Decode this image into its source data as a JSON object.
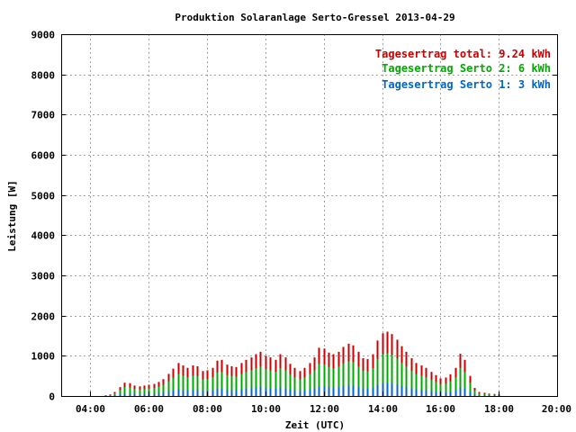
{
  "chart_data": {
    "type": "bar",
    "stacked": true,
    "title": "Produktion Solaranlage Serto-Gressel 2013-04-29",
    "xlabel": "Zeit (UTC)",
    "ylabel": "Leistung [W]",
    "ylim": [
      0,
      9000
    ],
    "xlim": [
      3.0,
      20.0
    ],
    "grid": true,
    "legend_position": "top-right",
    "yticks": [
      "0",
      "1000",
      "2000",
      "3000",
      "4000",
      "5000",
      "6000",
      "7000",
      "8000",
      "9000"
    ],
    "xticks": [
      "04:00",
      "06:00",
      "08:00",
      "10:00",
      "12:00",
      "14:00",
      "16:00",
      "18:00",
      "20:00"
    ],
    "legend": [
      {
        "text": "Tagesertrag total: 9.24 kWh",
        "color": "#cc0000"
      },
      {
        "text": "Tagesertrag Serto 2: 6 kWh",
        "color": "#00aa00"
      },
      {
        "text": "Tagesertrag Serto 1: 3 kWh",
        "color": "#0066cc"
      }
    ],
    "series": [
      {
        "color": "#0066cc",
        "stack_layer": 1
      },
      {
        "color": "#00aa00",
        "stack_layer": 2
      },
      {
        "color": "#cc0000",
        "stack_layer": 3
      }
    ],
    "x": [
      4.5,
      4.67,
      4.83,
      5.0,
      5.17,
      5.33,
      5.5,
      5.67,
      5.83,
      6.0,
      6.17,
      6.33,
      6.5,
      6.67,
      6.83,
      7.0,
      7.17,
      7.33,
      7.5,
      7.67,
      7.83,
      8.0,
      8.17,
      8.33,
      8.5,
      8.67,
      8.83,
      9.0,
      9.17,
      9.33,
      9.5,
      9.67,
      9.83,
      10.0,
      10.17,
      10.33,
      10.5,
      10.67,
      10.83,
      11.0,
      11.17,
      11.33,
      11.5,
      11.67,
      11.83,
      12.0,
      12.17,
      12.33,
      12.5,
      12.67,
      12.83,
      13.0,
      13.17,
      13.33,
      13.5,
      13.67,
      13.83,
      14.0,
      14.17,
      14.33,
      14.5,
      14.67,
      14.83,
      15.0,
      15.17,
      15.33,
      15.5,
      15.67,
      15.83,
      16.0,
      16.17,
      16.33,
      16.5,
      16.67,
      16.83,
      17.0,
      17.17,
      17.33,
      17.5,
      17.67,
      17.83,
      18.0
    ],
    "total": [
      20,
      40,
      100,
      220,
      330,
      320,
      260,
      240,
      260,
      280,
      300,
      350,
      420,
      550,
      680,
      820,
      760,
      700,
      760,
      740,
      620,
      640,
      700,
      880,
      900,
      780,
      740,
      720,
      820,
      900,
      960,
      1040,
      1100,
      1000,
      960,
      900,
      1040,
      960,
      800,
      700,
      620,
      700,
      820,
      960,
      1200,
      1180,
      1080,
      1040,
      1100,
      1220,
      1300,
      1260,
      1100,
      940,
      920,
      1040,
      1380,
      1560,
      1600,
      1540,
      1400,
      1240,
      1100,
      940,
      820,
      760,
      700,
      600,
      520,
      440,
      460,
      540,
      700,
      1050,
      900,
      500,
      200,
      100,
      80,
      60,
      50,
      40
    ],
    "serto2": [
      12,
      26,
      66,
      146,
      220,
      214,
      174,
      160,
      174,
      186,
      200,
      234,
      280,
      366,
      454,
      546,
      506,
      466,
      506,
      494,
      414,
      426,
      466,
      586,
      600,
      520,
      494,
      480,
      546,
      600,
      640,
      694,
      734,
      666,
      640,
      600,
      694,
      640,
      534,
      466,
      414,
      466,
      546,
      640,
      800,
      786,
      720,
      694,
      734,
      814,
      866,
      840,
      734,
      626,
      614,
      694,
      920,
      1040,
      1066,
      1026,
      934,
      826,
      734,
      626,
      546,
      506,
      466,
      400,
      346,
      294,
      306,
      360,
      466,
      700,
      600,
      334,
      134,
      66,
      54,
      40,
      34,
      26
    ],
    "serto1": [
      4,
      8,
      20,
      44,
      66,
      64,
      52,
      48,
      52,
      56,
      60,
      70,
      84,
      110,
      136,
      164,
      152,
      140,
      152,
      148,
      124,
      128,
      140,
      176,
      180,
      156,
      148,
      144,
      164,
      180,
      192,
      208,
      220,
      200,
      192,
      180,
      208,
      192,
      160,
      140,
      124,
      140,
      164,
      192,
      240,
      236,
      216,
      208,
      220,
      244,
      260,
      252,
      220,
      188,
      184,
      208,
      276,
      312,
      320,
      308,
      280,
      248,
      220,
      188,
      164,
      152,
      140,
      120,
      104,
      88,
      92,
      108,
      140,
      210,
      180,
      100,
      40,
      20,
      16,
      12,
      10,
      8
    ]
  }
}
